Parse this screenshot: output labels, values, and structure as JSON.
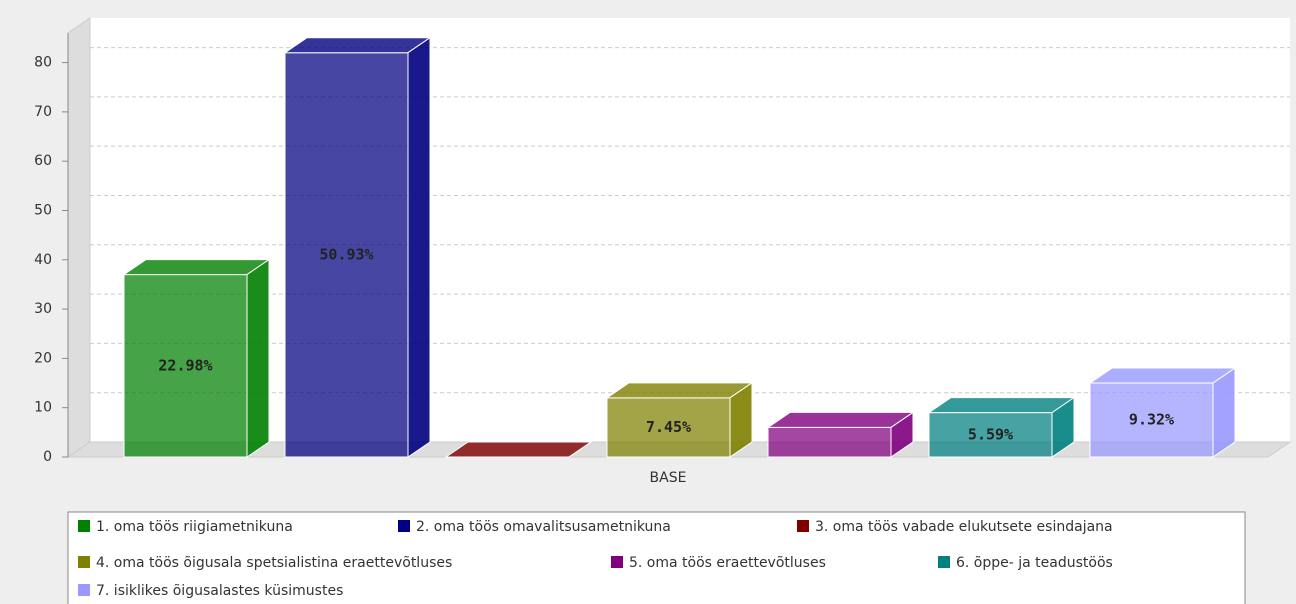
{
  "chart_data": {
    "type": "bar3d",
    "categories": [
      "BASE"
    ],
    "series": [
      {
        "name": "1. oma töös riigiametnikuna",
        "color": "#008000",
        "values": [
          37
        ],
        "value_labels": [
          "22.98%"
        ]
      },
      {
        "name": "2. oma töös omavalitsusametnikuna",
        "color": "#000080",
        "values": [
          82
        ],
        "value_labels": [
          "50.93%"
        ]
      },
      {
        "name": "3. oma töös vabade elukutsete esindajana",
        "color": "#800000",
        "values": [
          0
        ]
      },
      {
        "name": "4. oma töös õigusala spetsialistina eraettevõtluses",
        "color": "#808000",
        "values": [
          12
        ],
        "value_labels": [
          "7.45%"
        ]
      },
      {
        "name": "5. oma töös eraettevõtluses",
        "color": "#800080",
        "values": [
          6
        ]
      },
      {
        "name": "6. õppe- ja teadustöös",
        "color": "#008080",
        "values": [
          9
        ],
        "value_labels": [
          "5.59%"
        ]
      },
      {
        "name": "7. isiklikes õigusalastes küsimustes",
        "color": "#9999ff",
        "values": [
          15
        ],
        "value_labels": [
          "9.32%"
        ]
      }
    ],
    "ylim": [
      0,
      86
    ],
    "yticks": [
      0,
      10,
      20,
      30,
      40,
      50,
      60,
      70,
      80
    ],
    "grid": true
  }
}
